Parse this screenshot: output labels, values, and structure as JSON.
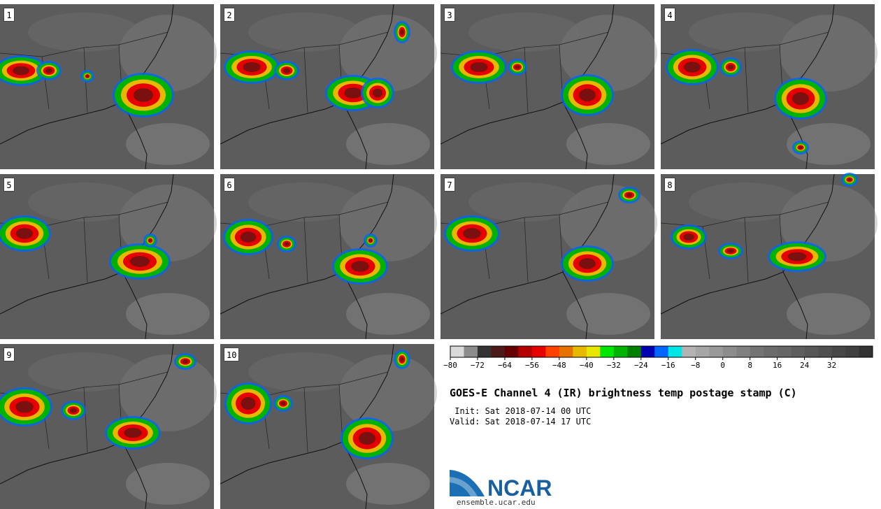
{
  "figure": {
    "title": "GOES-E Channel 4 (IR) brightness temp postage stamp (C)",
    "init_label": " Init: Sat 2018-07-14 00 UTC",
    "valid_label": "Valid: Sat 2018-07-14 17 UTC"
  },
  "panels": [
    {
      "label": "1"
    },
    {
      "label": "2"
    },
    {
      "label": "3"
    },
    {
      "label": "4"
    },
    {
      "label": "5"
    },
    {
      "label": "6"
    },
    {
      "label": "7"
    },
    {
      "label": "8"
    },
    {
      "label": "9"
    },
    {
      "label": "10"
    }
  ],
  "colorbar": {
    "min": -80,
    "max": 44,
    "step": 4,
    "tick_labels": [
      "-80",
      "-72",
      "-64",
      "-56",
      "-48",
      "-40",
      "-32",
      "-24",
      "-16",
      "-8",
      "0",
      "8",
      "16",
      "24",
      "32"
    ],
    "colors": [
      "#d9d9d9",
      "#8c8c8c",
      "#333333",
      "#4d1a1a",
      "#660000",
      "#b30000",
      "#e60000",
      "#ff4000",
      "#e67300",
      "#e6b800",
      "#e6e600",
      "#00e600",
      "#00b300",
      "#008000",
      "#0000b3",
      "#0066ff",
      "#00e6e6",
      "#b3b3b3",
      "#a6a6a6",
      "#999999",
      "#8c8c8c",
      "#808080",
      "#737373",
      "#6b6b6b",
      "#666666",
      "#5e5e5e",
      "#575757",
      "#4f4f4f",
      "#474747",
      "#404040",
      "#333333"
    ]
  },
  "logo": {
    "name": "NCAR",
    "url": "ensemble.ucar.edu"
  }
}
